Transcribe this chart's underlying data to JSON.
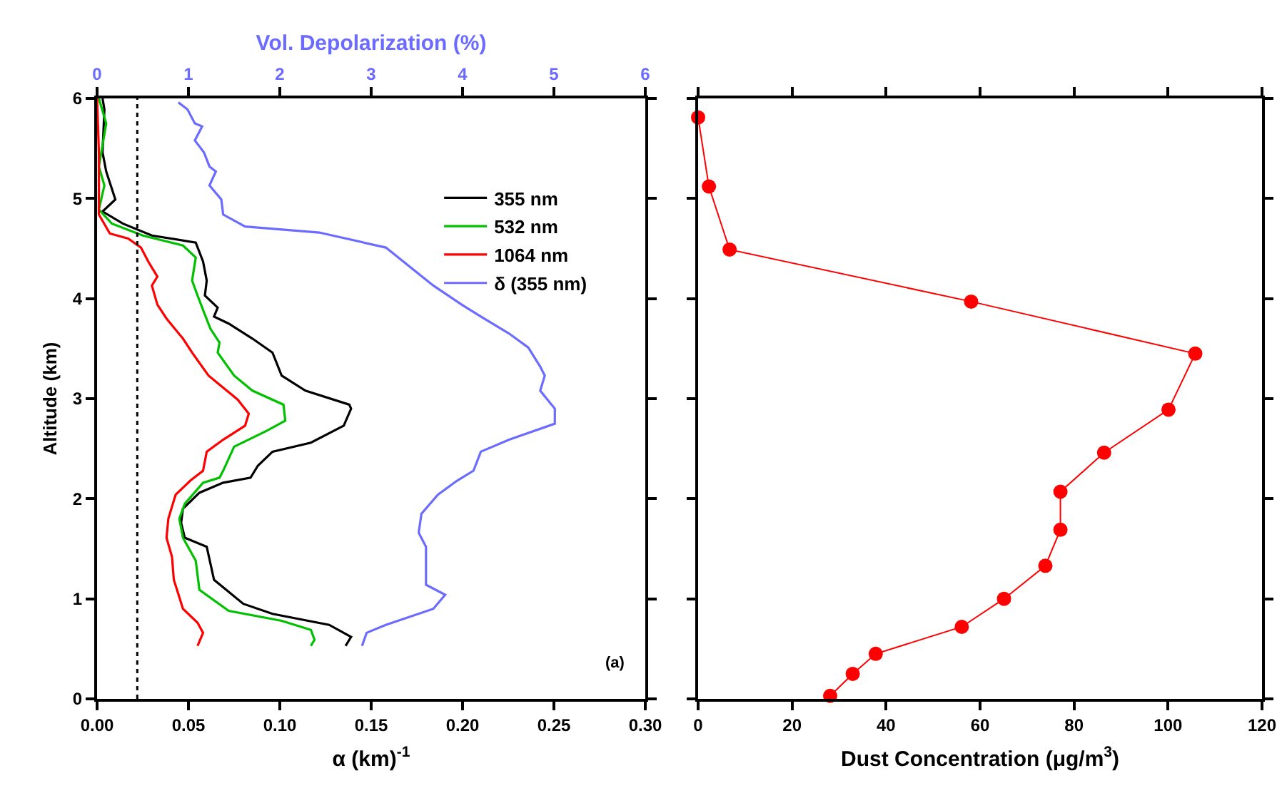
{
  "chart_data": [
    {
      "type": "line",
      "xlabel": "α (km)$^{-1}$",
      "ylabel": "Altitude (km)",
      "x2label": "Vol. Depolarization (%)",
      "annotations": [
        "(a)"
      ],
      "legend": "top right",
      "xlim": [
        0,
        0.3
      ],
      "xticks": [
        {
          "value": 0,
          "label": "0.00"
        },
        {
          "value": 0.05,
          "label": "0.05"
        },
        {
          "value": 0.1,
          "label": "0.10"
        },
        {
          "value": 0.15,
          "label": "0.15"
        },
        {
          "value": 0.2,
          "label": "0.20"
        },
        {
          "value": 0.25,
          "label": "0.25"
        },
        {
          "value": 0.3,
          "label": "0.30"
        }
      ],
      "x2lim": [
        0,
        6
      ],
      "x2ticks": [
        0,
        1,
        2,
        3,
        4,
        5,
        6
      ],
      "ylim": [
        0,
        6
      ],
      "yticks": [
        0,
        1,
        2,
        3,
        4,
        5,
        6
      ],
      "ref_lines": [
        {
          "axis": "x",
          "value": 0.022,
          "color": "#000000",
          "line_style": "dotted"
        }
      ],
      "series": [
        {
          "name": "355 nm",
          "color": "#000000",
          "x": [
            0.003,
            0.004,
            0.003,
            0.005,
            0.01,
            0.003,
            0.014,
            0.03,
            0.054,
            0.058,
            0.06,
            0.059,
            0.066,
            0.064,
            0.072,
            0.085,
            0.096,
            0.101,
            0.114,
            0.138,
            0.139,
            0.135,
            0.117,
            0.096,
            0.088,
            0.084,
            0.069,
            0.056,
            0.047,
            0.046,
            0.048,
            0.06,
            0.064,
            0.08,
            0.096,
            0.127,
            0.139,
            0.136
          ],
          "values": [
            6,
            5.89,
            5.46,
            5.27,
            4.99,
            4.87,
            4.75,
            4.63,
            4.56,
            4.37,
            4.18,
            4.03,
            3.91,
            3.82,
            3.75,
            3.6,
            3.46,
            3.23,
            3.08,
            2.94,
            2.9,
            2.73,
            2.56,
            2.47,
            2.33,
            2.21,
            2.16,
            2.06,
            1.9,
            1.76,
            1.61,
            1.52,
            1.19,
            0.95,
            0.85,
            0.74,
            0.62,
            0.53
          ]
        },
        {
          "name": "532 nm",
          "color": "#00c000",
          "x": [
            0.001,
            0.005,
            0.001,
            0.004,
            0.001,
            0.008,
            0.025,
            0.047,
            0.054,
            0.052,
            0.055,
            0.059,
            0.062,
            0.067,
            0.066,
            0.075,
            0.085,
            0.102,
            0.103,
            0.093,
            0.075,
            0.069,
            0.067,
            0.058,
            0.048,
            0.045,
            0.047,
            0.054,
            0.056,
            0.072,
            0.101,
            0.117,
            0.119,
            0.117
          ],
          "values": [
            6,
            5.75,
            5.32,
            5.13,
            4.89,
            4.75,
            4.63,
            4.53,
            4.41,
            4.18,
            4.03,
            3.84,
            3.7,
            3.56,
            3.46,
            3.23,
            3.08,
            2.94,
            2.78,
            2.68,
            2.52,
            2.28,
            2.21,
            2.16,
            1.95,
            1.8,
            1.61,
            1.38,
            1.09,
            0.88,
            0.78,
            0.69,
            0.59,
            0.53
          ]
        },
        {
          "name": "1064 nm",
          "color": "#ff0000",
          "x": [
            0,
            0.001,
            0.001,
            0.007,
            0.017,
            0.024,
            0.028,
            0.033,
            0.03,
            0.033,
            0.038,
            0.047,
            0.052,
            0.061,
            0.077,
            0.083,
            0.081,
            0.069,
            0.06,
            0.058,
            0.051,
            0.043,
            0.039,
            0.038,
            0.041,
            0.042,
            0.047,
            0.055,
            0.058,
            0.055
          ],
          "values": [
            6,
            5.46,
            4.84,
            4.65,
            4.6,
            4.51,
            4.37,
            4.22,
            4.13,
            3.94,
            3.8,
            3.6,
            3.46,
            3.23,
            2.99,
            2.85,
            2.73,
            2.59,
            2.47,
            2.28,
            2.18,
            2.04,
            1.8,
            1.61,
            1.42,
            1.19,
            0.9,
            0.76,
            0.66,
            0.53
          ]
        },
        {
          "name": "δ (355 nm)",
          "color": "#6b6bff",
          "axis": "x2",
          "x": [
            0.89,
            0.99,
            1.07,
            1.15,
            1.07,
            1.17,
            1.23,
            1.3,
            1.23,
            1.36,
            1.38,
            1.62,
            2.43,
            3.16,
            3.42,
            3.68,
            3.99,
            4.2,
            4.51,
            4.72,
            4.85,
            4.9,
            4.85,
            5.01,
            5.01,
            4.51,
            4.2,
            4.12,
            3.94,
            3.73,
            3.55,
            3.52,
            3.6,
            3.6,
            3.81,
            3.68,
            3.16,
            2.95,
            2.9
          ],
          "values": [
            5.96,
            5.89,
            5.75,
            5.72,
            5.58,
            5.46,
            5.32,
            5.27,
            5.13,
            4.99,
            4.84,
            4.72,
            4.66,
            4.51,
            4.32,
            4.13,
            3.94,
            3.82,
            3.65,
            3.51,
            3.32,
            3.23,
            3.08,
            2.9,
            2.75,
            2.59,
            2.47,
            2.28,
            2.18,
            2.04,
            1.85,
            1.66,
            1.52,
            1.14,
            1.04,
            0.9,
            0.74,
            0.66,
            0.53
          ]
        }
      ]
    },
    {
      "type": "line",
      "xlabel": "Dust Concentration (μg/m$^{3}$)",
      "marker": "circle",
      "tick_labels": "x",
      "xlim": [
        0,
        120
      ],
      "xticks": [
        0,
        20,
        40,
        60,
        80,
        100,
        120
      ],
      "ylim": [
        0,
        6
      ],
      "yticks": [
        0,
        1,
        2,
        3,
        4,
        5,
        6
      ],
      "series": [
        {
          "color": "#ff0000",
          "x": [
            0,
            2.3,
            6.7,
            58.1,
            105.8,
            100.1,
            86.4,
            77.1,
            77.1,
            73.9,
            65.1,
            56.1,
            37.8,
            32.9,
            28.1
          ],
          "values": [
            5.81,
            5.12,
            4.49,
            3.97,
            3.45,
            2.89,
            2.46,
            2.07,
            1.69,
            1.33,
            1.0,
            0.72,
            0.45,
            0.25,
            0.03
          ]
        }
      ]
    }
  ]
}
